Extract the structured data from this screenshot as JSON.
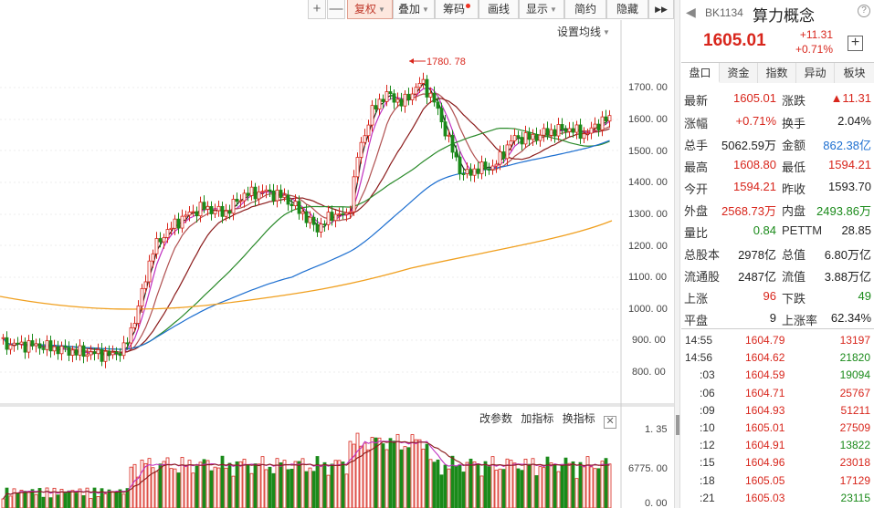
{
  "toolbar": {
    "plus": "+",
    "minus": "—",
    "fuquan": "复权",
    "diejia": "叠加",
    "chouma": "筹码",
    "huaxian": "画线",
    "xianshi": "显示",
    "jianyue": "简约",
    "yincang": "隐藏",
    "arrows": "▶▶"
  },
  "ma_settings": "设置均线",
  "chart": {
    "high_annotation": "1780. 78",
    "y_ticks": [
      "1700. 00",
      "1600. 00",
      "1500. 00",
      "1400. 00",
      "1300. 00",
      "1200. 00",
      "1100. 00",
      "1000. 00",
      "900. 00",
      "800. 00"
    ],
    "sub_ticks": [
      "1. 35",
      "6775. 00",
      "0. 00"
    ]
  },
  "indicator_bar": {
    "change_params": "改参数",
    "add_indicator": "加指标",
    "switch_indicator": "换指标",
    "close": "✕"
  },
  "panel": {
    "back": "◀",
    "code": "BK1134",
    "name": "算力概念",
    "info": "?",
    "price": "1605.01",
    "change": "+11.31",
    "change_pct": "+0.71%",
    "add": "+",
    "tabs": [
      "盘口",
      "资金",
      "指数",
      "异动",
      "板块"
    ],
    "rows": [
      {
        "l1": "最新",
        "v1": "1605.01",
        "c1": "red",
        "l2": "涨跌",
        "v2": "▲11.31",
        "c2": "red"
      },
      {
        "l1": "涨幅",
        "v1": "+0.71%",
        "c1": "red",
        "l2": "换手",
        "v2": "2.04%",
        "c2": "black"
      },
      {
        "l1": "总手",
        "v1": "5062.59万",
        "c1": "black",
        "l2": "金额",
        "v2": "862.38亿",
        "c2": "blue"
      },
      {
        "l1": "最高",
        "v1": "1608.80",
        "c1": "red",
        "l2": "最低",
        "v2": "1594.21",
        "c2": "red"
      },
      {
        "l1": "今开",
        "v1": "1594.21",
        "c1": "red",
        "l2": "昨收",
        "v2": "1593.70",
        "c2": "black"
      },
      {
        "l1": "外盘",
        "v1": "2568.73万",
        "c1": "red",
        "l2": "内盘",
        "v2": "2493.86万",
        "c2": "green"
      },
      {
        "l1": "量比",
        "v1": "0.84",
        "c1": "green",
        "l2": "PETTM",
        "v2": "28.85",
        "c2": "black"
      },
      {
        "l1": "总股本",
        "v1": "2978亿",
        "c1": "black",
        "l2": "总值",
        "v2": "6.80万亿",
        "c2": "black"
      },
      {
        "l1": "流通股",
        "v1": "2487亿",
        "c1": "black",
        "l2": "流值",
        "v2": "3.88万亿",
        "c2": "black"
      },
      {
        "l1": "上涨",
        "v1": "96",
        "c1": "red",
        "l2": "下跌",
        "v2": "49",
        "c2": "green"
      },
      {
        "l1": "平盘",
        "v1": "9",
        "c1": "black",
        "l2": "上涨率",
        "v2": "62.34%",
        "c2": "black"
      }
    ],
    "ticks": [
      {
        "t": "14:55",
        "p": "1604.79",
        "v": "13197",
        "vc": "red"
      },
      {
        "t": "14:56",
        "p": "1604.62",
        "v": "21820",
        "vc": "green"
      },
      {
        "t": ":03",
        "p": "1604.59",
        "v": "19094",
        "vc": "green"
      },
      {
        "t": ":06",
        "p": "1604.71",
        "v": "25767",
        "vc": "red"
      },
      {
        "t": ":09",
        "p": "1604.93",
        "v": "51211",
        "vc": "red"
      },
      {
        "t": ":10",
        "p": "1605.01",
        "v": "27509",
        "vc": "red"
      },
      {
        "t": ":12",
        "p": "1604.91",
        "v": "13822",
        "vc": "green"
      },
      {
        "t": ":15",
        "p": "1604.96",
        "v": "23018",
        "vc": "red"
      },
      {
        "t": ":18",
        "p": "1605.05",
        "v": "17129",
        "vc": "red"
      },
      {
        "t": ":21",
        "p": "1605.03",
        "v": "23115",
        "vc": "green"
      }
    ]
  },
  "colors": {
    "up": "#d8261c",
    "down": "#1a8a1a",
    "ma_blue": "#1d6fd0",
    "ma_orange": "#f0a020"
  }
}
